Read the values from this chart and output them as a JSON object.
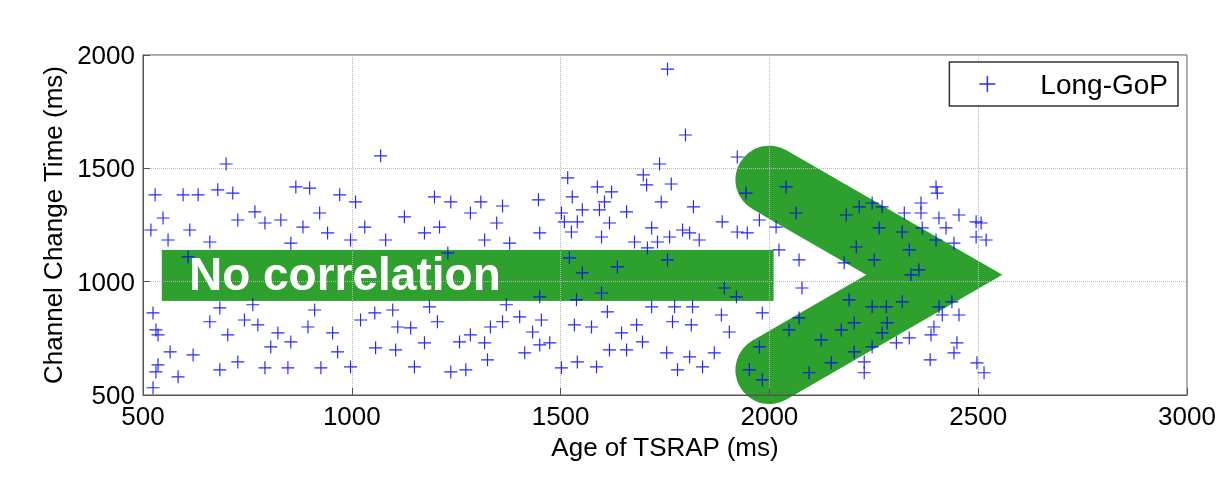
{
  "chart_data": {
    "type": "scatter",
    "xlabel": "Age of TSRAP (ms)",
    "ylabel": "Channel Change Time (ms)",
    "xlim": [
      500,
      3000
    ],
    "xticks": [
      500,
      1000,
      1500,
      2000,
      2500,
      3000
    ],
    "ylim": [
      500,
      2000
    ],
    "yticks": [
      500,
      1000,
      1500,
      2000
    ],
    "grid": true,
    "legend": "top right",
    "marker": "cross",
    "annotations": [
      "No correlation"
    ],
    "series": [
      {
        "name": "Long-GoP",
        "color": "#0000ff",
        "x": [
          699,
          1069,
          529,
          596,
          632,
          679,
          715,
          866,
          899,
          971,
          1009,
          1198,
          1237,
          1309,
          519,
          548,
          560,
          612,
          660,
          727,
          768,
          792,
          830,
          883,
          923,
          942,
          997,
          1031,
          1081,
          1126,
          1174,
          1210,
          1284,
          1318,
          608,
          854,
          1230,
          524,
          531,
          536,
          536,
          531,
          524,
          584,
          565,
          620,
          660,
          684,
          684,
          703,
          727,
          743,
          763,
          775,
          792,
          806,
          823,
          847,
          854,
          895,
          911,
          926,
          954,
          966,
          997,
          1021,
          1055,
          1057,
          1098,
          1105,
          1110,
          1141,
          1150,
          1174,
          1186,
          1205,
          1237,
          1258,
          1273,
          1284,
          1318,
          1325,
          1332,
          1756,
          1799,
          1923,
          1737,
          1698,
          1517,
          1588,
          1622,
          1706,
          1765,
          1447,
          1528,
          1361,
          1605,
          1658,
          1741,
          1818,
          1502,
          1552,
          1593,
          1347,
          1509,
          1540,
          1617,
          1718,
          1792,
          1887,
          1450,
          1526,
          1598,
          1677,
          1732,
          1761,
          1809,
          1832,
          1923,
          1947,
          1976,
          1944,
          2040,
          2016,
          2064,
          1378,
          1708,
          1756,
          1636,
          1552,
          1521,
          1598,
          1892,
          2078,
          1450,
          2023,
          2071,
          1370,
          1361,
          1402,
          1433,
          1454,
          1474,
          1538,
          1533,
          1574,
          1612,
          1646,
          1682,
          1696,
          1718,
          1773,
          1816,
          1813,
          1768,
          1502,
          1540,
          1586,
          1414,
          1450,
          1617,
          1658,
          1754,
          1780,
          1809,
          1840,
          1868,
          1904,
          1885,
          1921,
          1983,
          2047,
          2071,
          2095,
          1976,
          1952,
          1983,
          2124,
          2148,
          2172,
          2399,
          2402,
          2363,
          2246,
          2215,
          2270,
          2323,
          2363,
          2454,
          2406,
          2495,
          2507,
          2184,
          2263,
          2366,
          2423,
          2318,
          2399,
          2442,
          2495,
          2519,
          2208,
          2335,
          2251,
          2179,
          2339,
          2358,
          2191,
          2246,
          2318,
          2280,
          2406,
          2437,
          2454,
          2414,
          2203,
          2282,
          2394,
          2270,
          2387,
          2335,
          2304,
          2246,
          2449,
          2203,
          2227,
          2442,
          2385,
          2227,
          2497,
          2514
        ],
        "values": [
          1519,
          1555,
          1383,
          1383,
          1383,
          1405,
          1391,
          1418,
          1413,
          1383,
          1352,
          1374,
          1352,
          1352,
          1228,
          1281,
          1184,
          1228,
          1175,
          1272,
          1308,
          1259,
          1272,
          1241,
          1303,
          1215,
          1184,
          1241,
          1184,
          1286,
          1215,
          1241,
          1303,
          1184,
          1109,
          1170,
          1127,
          862,
          787,
          765,
          633,
          602,
          532,
          580,
          690,
          677,
          823,
          884,
          611,
          765,
          646,
          831,
          898,
          809,
          620,
          712,
          774,
          620,
          734,
          800,
          875,
          620,
          774,
          690,
          624,
          831,
          862,
          708,
          875,
          699,
          800,
          796,
          624,
          730,
          889,
          823,
          602,
          734,
          611,
          765,
          730,
          655,
          800,
          1938,
          1647,
          1550,
          1519,
          1471,
          1458,
          1418,
          1396,
          1427,
          1431,
          1361,
          1374,
          1334,
          1352,
          1308,
          1352,
          1330,
          1303,
          1317,
          1317,
          1259,
          1264,
          1264,
          1259,
          1237,
          1228,
          1264,
          1215,
          1219,
          1197,
          1175,
          1175,
          1197,
          1215,
          1184,
          1219,
          1215,
          1272,
          1391,
          1418,
          1241,
          1303,
          1170,
          1149,
          1096,
          1065,
          1039,
          1105,
          950,
          972,
          972,
          933,
          1140,
          1096,
          898,
          823,
          845,
          778,
          831,
          730,
          920,
          809,
          800,
          867,
          774,
          809,
          734,
          889,
          889,
          889,
          809,
          823,
          620,
          646,
          624,
          686,
          721,
          699,
          699,
          686,
          611,
          668,
          624,
          686,
          778,
          853,
          933,
          862,
          787,
          840,
          598,
          712,
          611,
          567,
          743,
          642,
          787,
          1418,
          1391,
          1347,
          1347,
          1330,
          1330,
          1303,
          1303,
          1294,
          1281,
          1264,
          1259,
          1294,
          1237,
          1237,
          1237,
          1219,
          1184,
          1170,
          1197,
          1184,
          1153,
          1140,
          1096,
          1083,
          1030,
          1052,
          920,
          889,
          911,
          889,
          889,
          911,
          853,
          853,
          818,
          818,
          800,
          774,
          765,
          752,
          730,
          712,
          730,
          690,
          646,
          686,
          655,
          598,
          642,
          598
        ]
      }
    ]
  }
}
